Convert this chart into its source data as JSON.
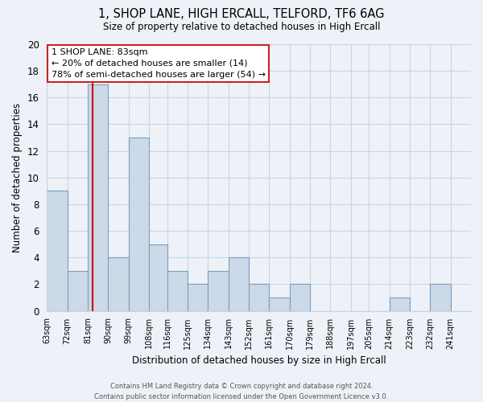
{
  "title": "1, SHOP LANE, HIGH ERCALL, TELFORD, TF6 6AG",
  "subtitle": "Size of property relative to detached houses in High Ercall",
  "xlabel": "Distribution of detached houses by size in High Ercall",
  "ylabel": "Number of detached properties",
  "bin_labels": [
    "63sqm",
    "72sqm",
    "81sqm",
    "90sqm",
    "99sqm",
    "108sqm",
    "116sqm",
    "125sqm",
    "134sqm",
    "143sqm",
    "152sqm",
    "161sqm",
    "170sqm",
    "179sqm",
    "188sqm",
    "197sqm",
    "205sqm",
    "214sqm",
    "223sqm",
    "232sqm",
    "241sqm"
  ],
  "bin_edges": [
    63,
    72,
    81,
    90,
    99,
    108,
    116,
    125,
    134,
    143,
    152,
    161,
    170,
    179,
    188,
    197,
    205,
    214,
    223,
    232,
    241
  ],
  "counts": [
    9,
    3,
    17,
    4,
    13,
    5,
    3,
    2,
    3,
    4,
    2,
    1,
    2,
    0,
    0,
    0,
    0,
    1,
    0,
    2,
    0
  ],
  "bar_color": "#ccd9e8",
  "bar_edge_color": "#7aa0c0",
  "reference_line_x": 83,
  "reference_line_color": "#cc0000",
  "annotation_line1": "1 SHOP LANE: 83sqm",
  "annotation_line2": "← 20% of detached houses are smaller (14)",
  "annotation_line3": "78% of semi-detached houses are larger (54) →",
  "ylim": [
    0,
    20
  ],
  "yticks": [
    0,
    2,
    4,
    6,
    8,
    10,
    12,
    14,
    16,
    18,
    20
  ],
  "footer_line1": "Contains HM Land Registry data © Crown copyright and database right 2024.",
  "footer_line2": "Contains public sector information licensed under the Open Government Licence v3.0.",
  "bg_color": "#eef2f8",
  "grid_color": "#c8d4e4",
  "annotation_border_color": "#cc2222"
}
